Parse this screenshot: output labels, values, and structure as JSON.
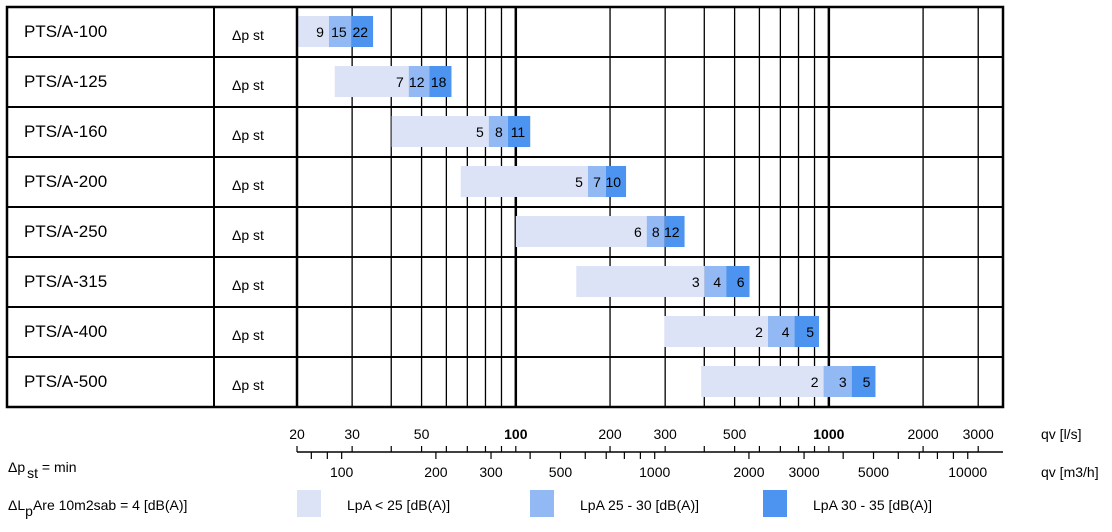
{
  "chart_data": {
    "type": "bar",
    "x_scale": "log",
    "xlim": [
      20,
      3600
    ],
    "rows": [
      {
        "model": "PTS/A-100",
        "dp_label": "Δp st",
        "segments": [
          {
            "from": 20,
            "to": 25.3,
            "level": "low",
            "label": "9"
          },
          {
            "from": 25.3,
            "to": 29.9,
            "level": "mid",
            "label": "15"
          },
          {
            "from": 29.9,
            "to": 35,
            "level": "high",
            "label": "22"
          }
        ]
      },
      {
        "model": "PTS/A-125",
        "dp_label": "Δp st",
        "segments": [
          {
            "from": 26.4,
            "to": 45.5,
            "level": "low",
            "label": "7"
          },
          {
            "from": 45.5,
            "to": 53,
            "level": "mid",
            "label": "12"
          },
          {
            "from": 53,
            "to": 62.3,
            "level": "high",
            "label": "18"
          }
        ]
      },
      {
        "model": "PTS/A-160",
        "dp_label": "Δp st",
        "segments": [
          {
            "from": 40.1,
            "to": 82,
            "level": "low",
            "label": "5"
          },
          {
            "from": 82,
            "to": 94.3,
            "level": "mid",
            "label": "8"
          },
          {
            "from": 94.3,
            "to": 111.2,
            "level": "high",
            "label": "11"
          }
        ]
      },
      {
        "model": "PTS/A-200",
        "dp_label": "Δp st",
        "segments": [
          {
            "from": 66.7,
            "to": 170,
            "level": "low",
            "label": "5"
          },
          {
            "from": 170,
            "to": 194,
            "level": "mid",
            "label": "7"
          },
          {
            "from": 194,
            "to": 225,
            "level": "high",
            "label": "10"
          }
        ]
      },
      {
        "model": "PTS/A-250",
        "dp_label": "Δp st",
        "segments": [
          {
            "from": 100,
            "to": 262,
            "level": "low",
            "label": "6"
          },
          {
            "from": 262,
            "to": 299,
            "level": "mid",
            "label": "8"
          },
          {
            "from": 299,
            "to": 346,
            "level": "high",
            "label": "12"
          }
        ]
      },
      {
        "model": "PTS/A-315",
        "dp_label": "Δp st",
        "segments": [
          {
            "from": 156,
            "to": 401,
            "level": "low",
            "label": "3"
          },
          {
            "from": 401,
            "to": 470,
            "level": "mid",
            "label": "4"
          },
          {
            "from": 470,
            "to": 558,
            "level": "high",
            "label": "6"
          }
        ]
      },
      {
        "model": "PTS/A-400",
        "dp_label": "Δp st",
        "segments": [
          {
            "from": 298,
            "to": 639,
            "level": "low",
            "label": "2"
          },
          {
            "from": 639,
            "to": 777,
            "level": "mid",
            "label": "4"
          },
          {
            "from": 777,
            "to": 930,
            "level": "high",
            "label": "5"
          }
        ]
      },
      {
        "model": "PTS/A-500",
        "dp_label": "Δp st",
        "segments": [
          {
            "from": 391,
            "to": 962,
            "level": "low",
            "label": "2"
          },
          {
            "from": 962,
            "to": 1183,
            "level": "mid",
            "label": "3"
          },
          {
            "from": 1183,
            "to": 1409,
            "level": "high",
            "label": "5"
          }
        ]
      }
    ],
    "x_ticks_ls": [
      {
        "value": 20,
        "label": "20"
      },
      {
        "value": 30,
        "label": "30"
      },
      {
        "value": 50,
        "label": "50"
      },
      {
        "value": 100,
        "label": "100",
        "bold": true
      },
      {
        "value": 200,
        "label": "200"
      },
      {
        "value": 300,
        "label": "300"
      },
      {
        "value": 500,
        "label": "500"
      },
      {
        "value": 1000,
        "label": "1000",
        "bold": true
      },
      {
        "value": 2000,
        "label": "2000"
      },
      {
        "value": 3000,
        "label": "3000"
      }
    ],
    "x_ticks_m3h": [
      {
        "value": 100,
        "label": "100"
      },
      {
        "value": 200,
        "label": "200"
      },
      {
        "value": 300,
        "label": "300"
      },
      {
        "value": 500,
        "label": "500"
      },
      {
        "value": 1000,
        "label": "1000"
      },
      {
        "value": 2000,
        "label": "2000"
      },
      {
        "value": 3000,
        "label": "3000"
      },
      {
        "value": 5000,
        "label": "5000"
      },
      {
        "value": 10000,
        "label": "10000"
      }
    ],
    "m3h_minor": [
      80,
      90,
      400,
      600,
      700,
      800,
      900,
      4000,
      6000,
      7000,
      8000,
      9000
    ],
    "unit_ls": "qv [l/s]",
    "unit_m3h": "qv [m3/h]",
    "note_dp_main": "Δp",
    "note_dp_sub": "st",
    "note_dp_tail": " = min",
    "note_lp_main": "ΔL",
    "note_lp_sub": "p",
    "note_lp_tail": "Are 10m2sab = 4 [dB(A)]",
    "legend": [
      {
        "level": "low",
        "label": "LpA < 25 [dB(A)]"
      },
      {
        "level": "mid",
        "label": "LpA 25 - 30 [dB(A)]"
      },
      {
        "level": "high",
        "label": "LpA 30 - 35 [dB(A)]"
      }
    ],
    "colors": {
      "low": "#dde3f7",
      "mid": "#93b9f5",
      "high": "#4c94f0",
      "grid": "#000000"
    },
    "grid": true
  }
}
